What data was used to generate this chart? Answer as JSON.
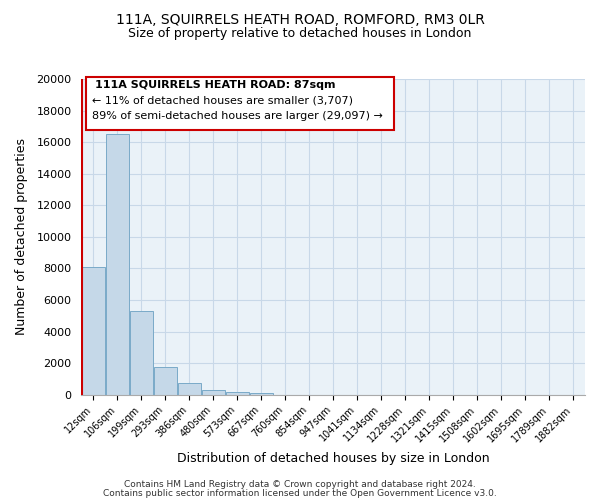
{
  "title": "111A, SQUIRRELS HEATH ROAD, ROMFORD, RM3 0LR",
  "subtitle": "Size of property relative to detached houses in London",
  "xlabel": "Distribution of detached houses by size in London",
  "ylabel": "Number of detached properties",
  "bar_labels": [
    "12sqm",
    "106sqm",
    "199sqm",
    "293sqm",
    "386sqm",
    "480sqm",
    "573sqm",
    "667sqm",
    "760sqm",
    "854sqm",
    "947sqm",
    "1041sqm",
    "1134sqm",
    "1228sqm",
    "1321sqm",
    "1415sqm",
    "1508sqm",
    "1602sqm",
    "1695sqm",
    "1789sqm",
    "1882sqm"
  ],
  "bar_values": [
    8100,
    16500,
    5300,
    1750,
    750,
    300,
    200,
    100,
    0,
    0,
    0,
    0,
    0,
    0,
    0,
    0,
    0,
    0,
    0,
    0,
    0
  ],
  "bar_color": "#c5d8e8",
  "bar_edge_color": "#7aaac8",
  "ylim": [
    0,
    20000
  ],
  "yticks": [
    0,
    2000,
    4000,
    6000,
    8000,
    10000,
    12000,
    14000,
    16000,
    18000,
    20000
  ],
  "property_label": "111A SQUIRRELS HEATH ROAD: 87sqm",
  "smaller_pct": 11,
  "smaller_count": "3,707",
  "larger_pct": 89,
  "larger_count": "29,097",
  "vline_color": "#cc0000",
  "box_color": "#ffffff",
  "box_edge_color": "#cc0000",
  "footer_line1": "Contains HM Land Registry data © Crown copyright and database right 2024.",
  "footer_line2": "Contains public sector information licensed under the Open Government Licence v3.0.",
  "grid_color": "#c8d8e8",
  "background_color": "#ffffff"
}
